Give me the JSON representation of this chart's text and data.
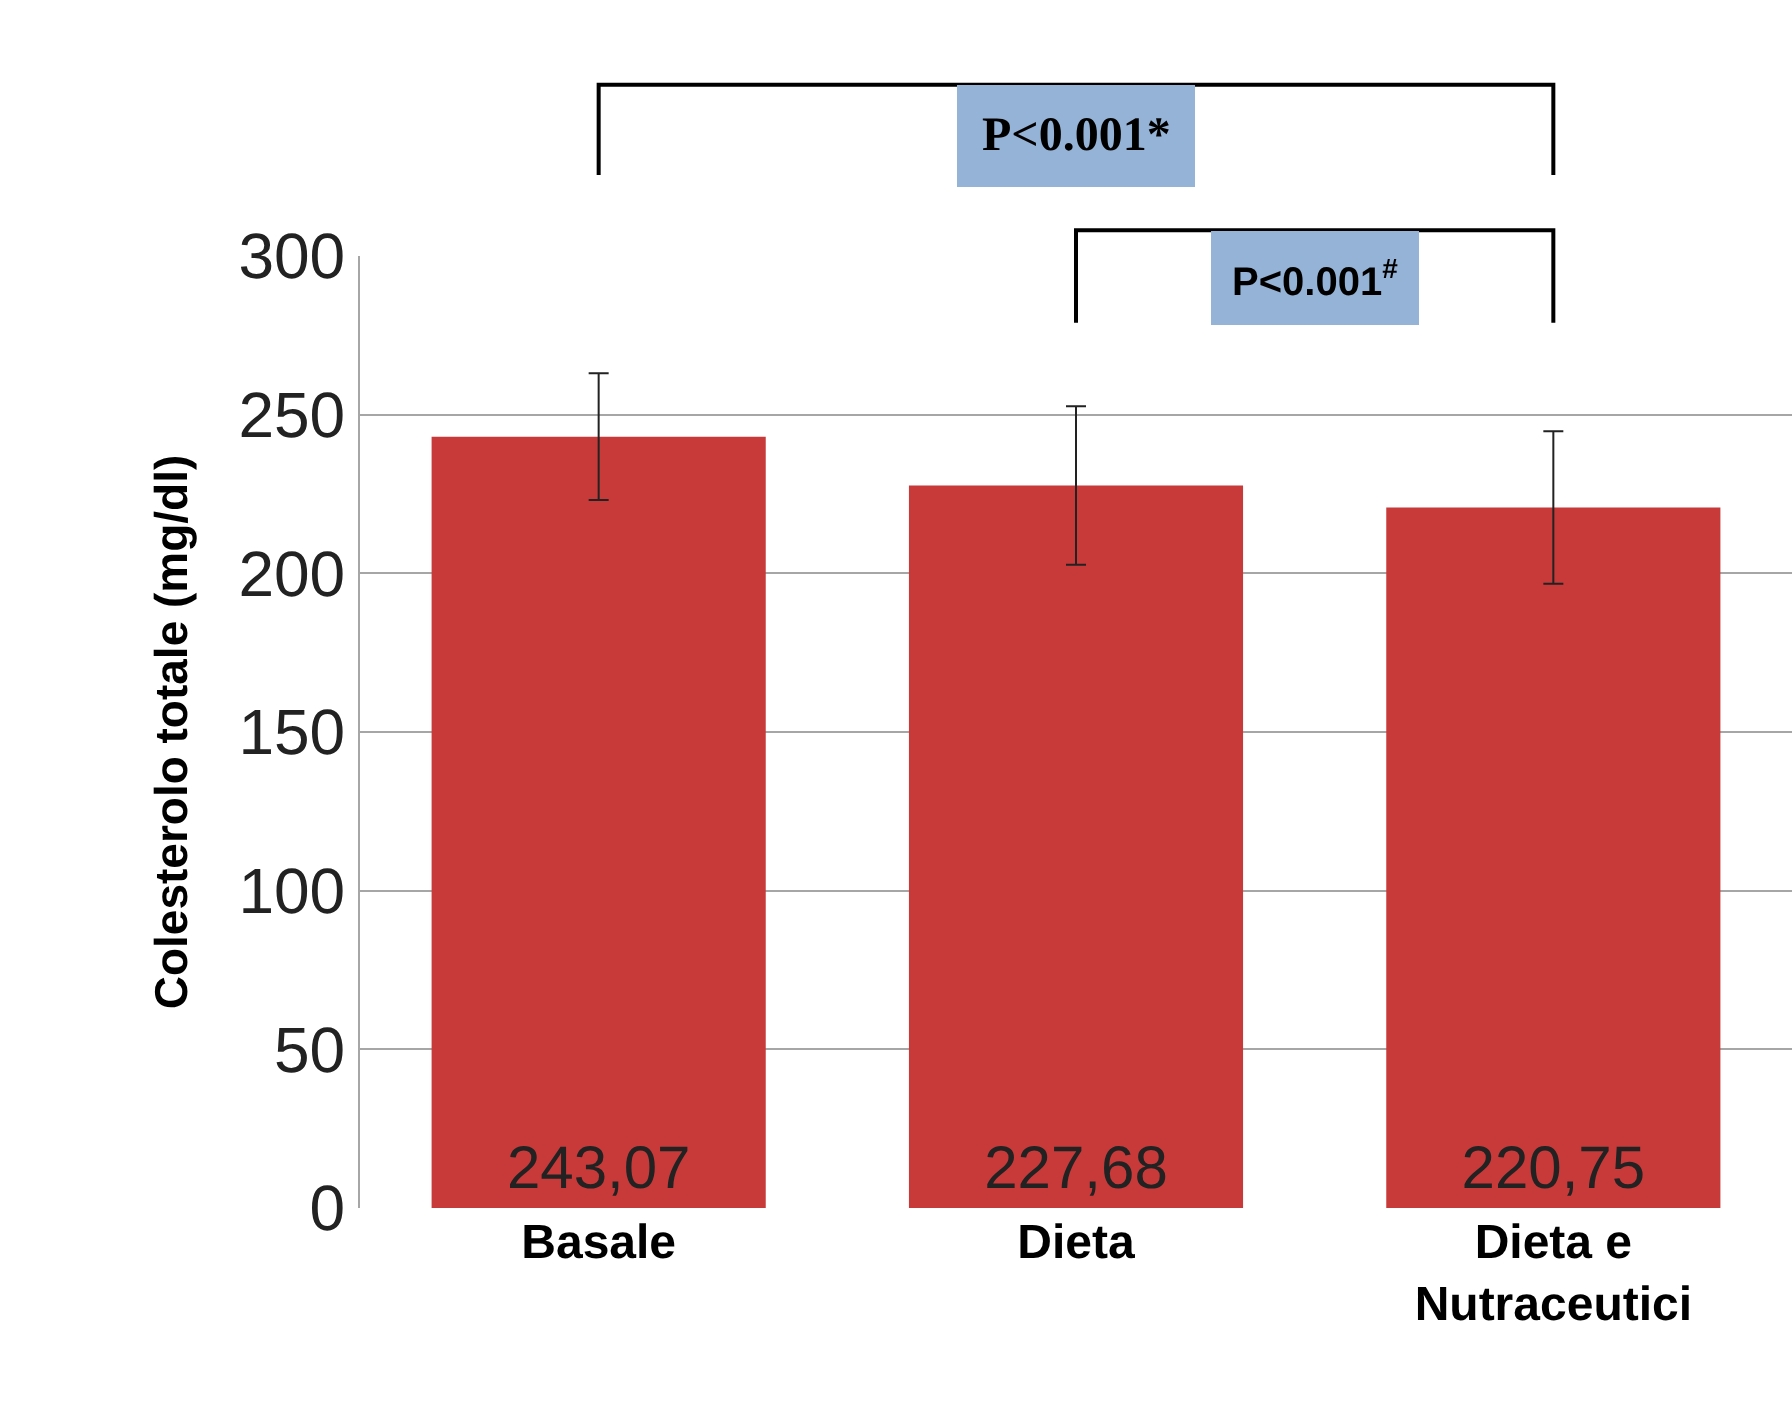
{
  "chart_data": {
    "type": "bar",
    "ylabel": "Colesterolo totale (mg/dl)",
    "categories": [
      "Basale",
      "Dieta",
      "Dieta e Nutraceutici"
    ],
    "values": [
      243.07,
      227.68,
      220.75
    ],
    "value_labels": [
      "243,07",
      "227,68",
      "220,75"
    ],
    "errors": [
      20,
      25,
      24
    ],
    "color": "#c83a3a",
    "ylim": [
      0,
      300
    ],
    "yticks": [
      0,
      50,
      100,
      150,
      200,
      250,
      300
    ],
    "grid": "y",
    "annotations": [
      "P<0.001*",
      "P<0.001$^{#}$"
    ]
  }
}
